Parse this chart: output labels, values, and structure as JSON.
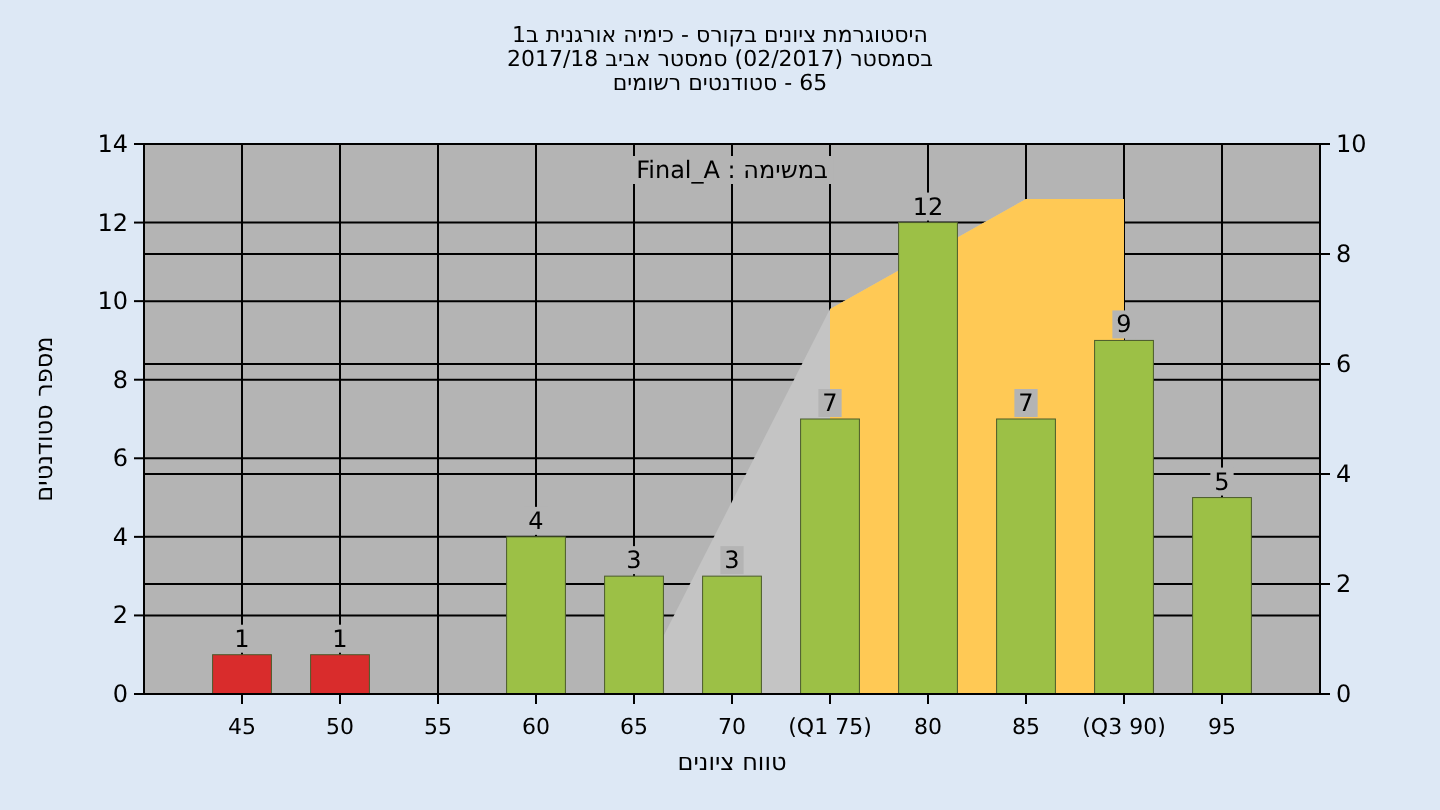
{
  "chart_data": {
    "type": "bar",
    "title": "היסטוגרמת ציונים בקורס - כימיה אורגנית ב1",
    "subtitle": "בסמסטר  (02/2017)  סמסטר אביב 2017/18\n65 - סטודנטים רשומים",
    "xlabel": "טווח ציונים",
    "ylabel": "מספר סטודנטים",
    "annotations": [
      "Final_A : במשימה"
    ],
    "categories": [
      "45",
      "50",
      "55",
      "60",
      "65",
      "70",
      "(Q1 75)",
      "80",
      "85",
      "(Q3 90)",
      "95"
    ],
    "series": [
      {
        "type": "area",
        "axis": "y2",
        "color": "#c4c4c4",
        "values": [
          null,
          null,
          null,
          null,
          0,
          null,
          7.0,
          null,
          9.0,
          9.0,
          null
        ]
      },
      {
        "type": "area",
        "axis": "y2",
        "color": "#ffc955",
        "values": [
          null,
          null,
          null,
          null,
          null,
          null,
          7.0,
          null,
          9.0,
          9.0,
          null
        ]
      },
      {
        "colors": [
          "#d92c2c",
          "#d92c2c",
          "#9cc046",
          "#9cc046",
          "#9cc046",
          "#9cc046",
          "#9cc046",
          "#9cc046",
          "#9cc046",
          "#9cc046",
          "#9cc046"
        ],
        "values": [
          1,
          1,
          0,
          4,
          3,
          3,
          7,
          12,
          7,
          9,
          5
        ],
        "value_labels": [
          "1",
          "1",
          null,
          "4",
          "3",
          "3",
          "7",
          "12",
          "7",
          "9",
          "5"
        ]
      }
    ],
    "ylim": [
      0,
      14
    ],
    "yticks": [
      0,
      2,
      4,
      6,
      8,
      10,
      12,
      14
    ],
    "y2lim": [
      0,
      10
    ],
    "y2ticks": [
      0,
      2,
      4,
      6,
      8,
      10
    ],
    "grid": true
  }
}
